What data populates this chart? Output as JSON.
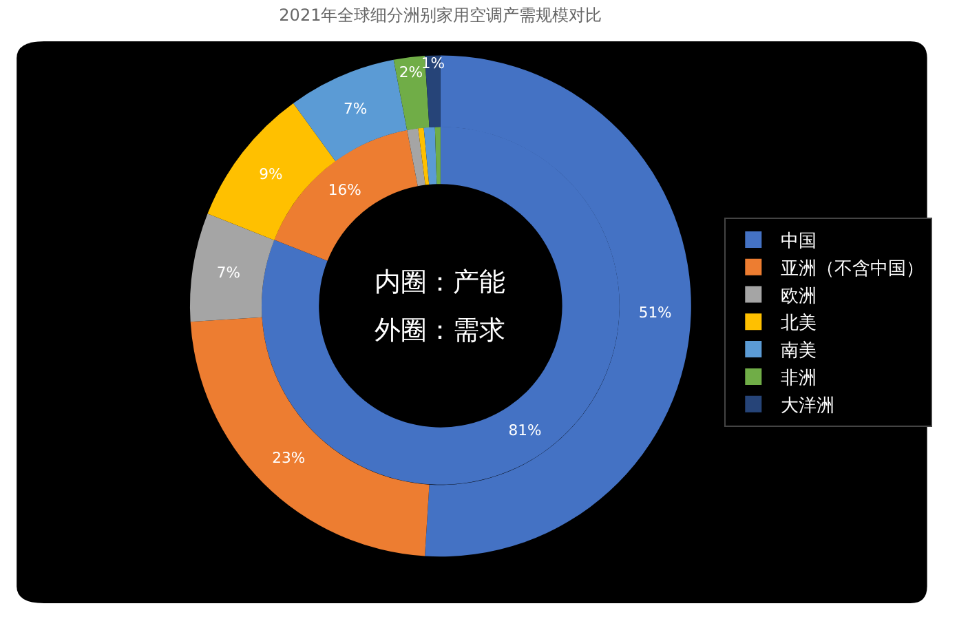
{
  "chart_data": {
    "type": "donut",
    "title": "2021年全球细分洲别家用空调产需规模对比",
    "categories": [
      "中国",
      "亚洲（不含中国）",
      "欧洲",
      "北美",
      "南美",
      "非洲",
      "大洋洲"
    ],
    "colors": [
      "#4472c4",
      "#ed7d31",
      "#a5a5a5",
      "#ffc000",
      "#5b9bd5",
      "#70ad47",
      "#264478"
    ],
    "series": [
      {
        "values": [
          81,
          16,
          1,
          0.5,
          1,
          0.5,
          0
        ],
        "value_labels": [
          "81%",
          "16%",
          null,
          null,
          null,
          null,
          null
        ]
      },
      {
        "values": [
          51,
          23,
          7,
          9,
          7,
          2,
          1
        ],
        "value_labels": [
          "51%",
          "23%",
          "7%",
          "9%",
          "7%",
          "2%",
          "1%"
        ]
      }
    ],
    "annotations": [
      "内圈：产能",
      "外圈：需求"
    ],
    "legend": "right"
  }
}
